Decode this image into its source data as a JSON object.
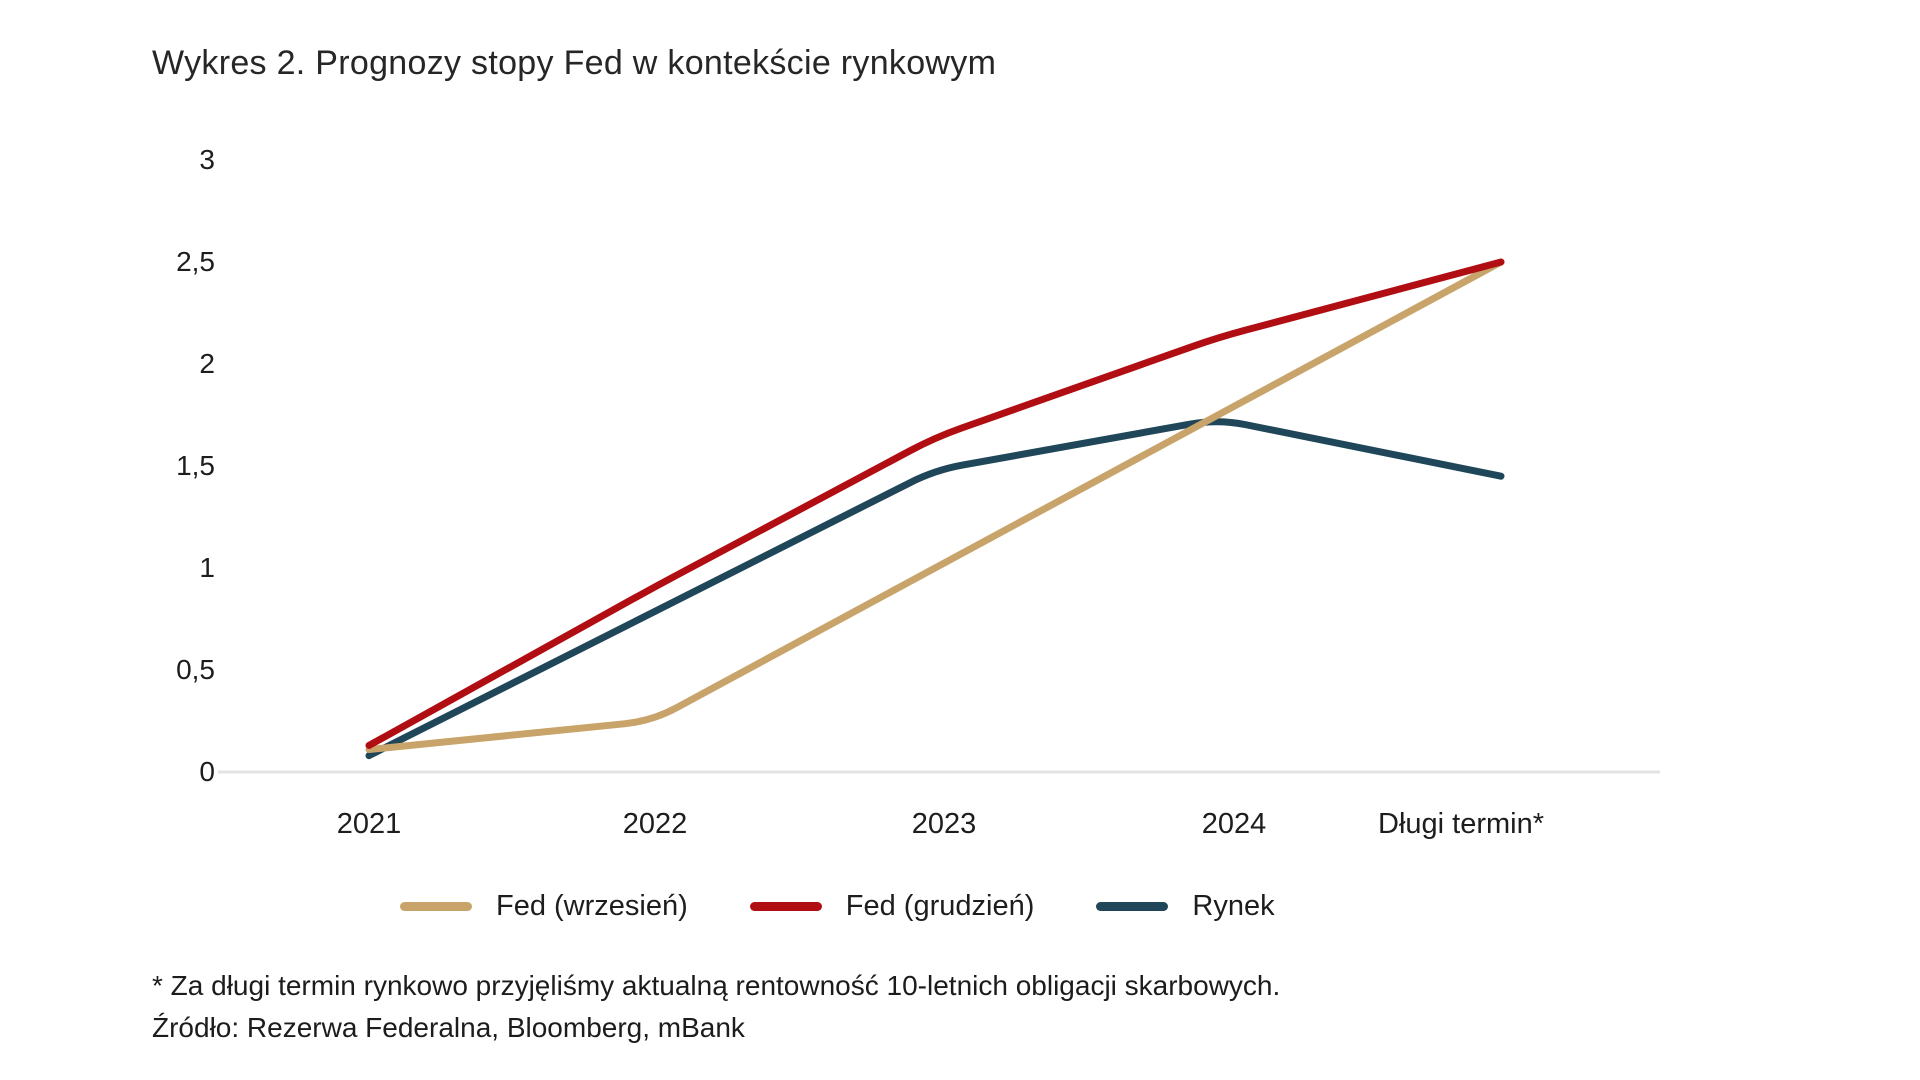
{
  "title": "Wykres 2. Prognozy stopy Fed w kontekście rynkowym",
  "chart_data": {
    "type": "line",
    "categories": [
      "2021",
      "2022",
      "2023",
      "2024",
      "Długi termin*"
    ],
    "series": [
      {
        "name": "Fed (wrzesień)",
        "color": "#C8A36A",
        "values": [
          0.11,
          0.25,
          1.0,
          1.75,
          2.5
        ]
      },
      {
        "name": "Fed (grudzień)",
        "color": "#B00E13",
        "values": [
          0.13,
          0.9,
          1.64,
          2.13,
          2.5
        ]
      },
      {
        "name": "Rynek",
        "color": "#1F4759",
        "values": [
          0.08,
          0.78,
          1.48,
          1.73,
          1.45
        ]
      }
    ],
    "ylim": [
      0,
      3
    ],
    "yticks": [
      "0",
      "0,5",
      "1",
      "1,5",
      "2",
      "2,5",
      "3"
    ],
    "ytick_values": [
      0,
      0.5,
      1,
      1.5,
      2,
      2.5,
      3
    ],
    "grid": false,
    "axis_line_color": "#E3E3E3",
    "legend_position": "bottom",
    "xlabel": "",
    "ylabel": ""
  },
  "footnote": "* Za długi termin rynkowo przyjęliśmy aktualną rentowność 10-letnich obligacji skarbowych.",
  "source": "Źródło: Rezerwa Federalna, Bloomberg, mBank"
}
